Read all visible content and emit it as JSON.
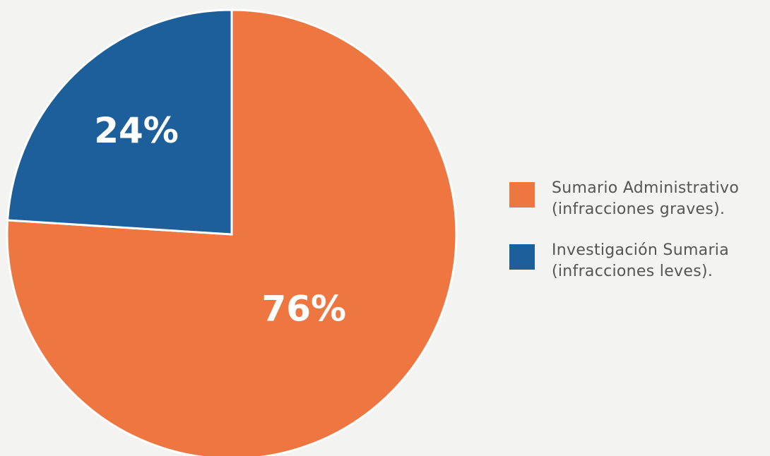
{
  "chart_data": {
    "type": "pie",
    "series": [
      {
        "name": "Sumario Administrativo\n(infracciones graves).",
        "color": "#ee7641",
        "values": [
          76
        ],
        "value_labels": [
          "76%"
        ]
      },
      {
        "name": "Investigación Sumaria\n(infracciones leves).",
        "color": "#1c5f9b",
        "values": [
          24
        ],
        "value_labels": [
          "24%"
        ]
      }
    ]
  }
}
